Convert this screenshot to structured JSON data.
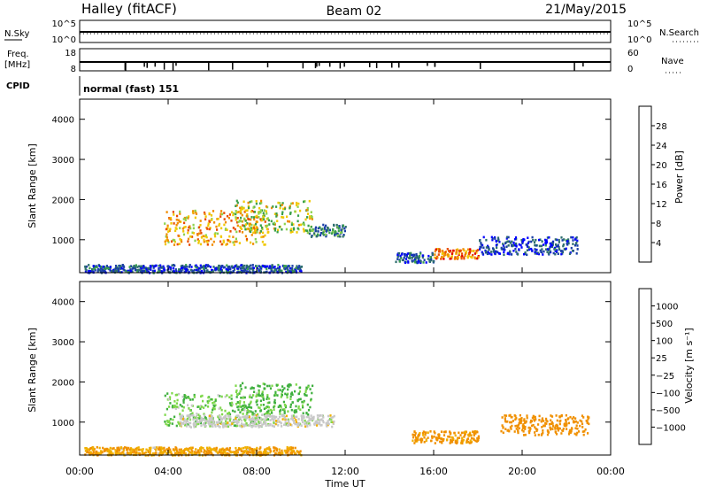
{
  "header": {
    "station": "Halley (fitACF)",
    "beam": "Beam 02",
    "date": "21/May/2015"
  },
  "noise_panel": {
    "left_label": "N.Sky",
    "left_ticks": [
      "10^5",
      "10^0"
    ],
    "right_label": "N.Search",
    "right_ticks": [
      "10^5",
      "10^0"
    ]
  },
  "freq_panel": {
    "left_label_line1": "Freq.",
    "left_label_line2": "[MHz]",
    "left_ticks": [
      "18",
      "8"
    ],
    "right_label": "Nave",
    "right_ticks": [
      "60",
      "0"
    ]
  },
  "cpid": {
    "label": "CPID",
    "value": "normal (fast) 151"
  },
  "colors": {
    "power": [
      "#0000ff",
      "#1a3fa6",
      "#2e6e6e",
      "#3aa04a",
      "#8ed24c",
      "#f0c800",
      "#f08c00",
      "#e84c00",
      "#e00000"
    ],
    "velocity": [
      "#e00000",
      "#f06000",
      "#f09000",
      "#f0b000",
      "#c8c8c8",
      "#7ed84a",
      "#40b040",
      "#2e8a80",
      "#2060a8",
      "#1030c8"
    ]
  },
  "chart_data": [
    {
      "type": "heatmap",
      "name": "power",
      "ylabel": "Slant Range [km]",
      "yticks": [
        "1000",
        "2000",
        "3000",
        "4000"
      ],
      "ylim": [
        180,
        4500
      ],
      "xlim": [
        0,
        24
      ],
      "colorbar": {
        "label": "Power [dB]",
        "ticks": [
          "4",
          "8",
          "12",
          "16",
          "20",
          "24",
          "28"
        ],
        "range": [
          0,
          32
        ]
      },
      "regions": [
        {
          "t0": 3.8,
          "t1": 8.5,
          "r0": 900,
          "r1": 1750,
          "value": 22
        },
        {
          "t0": 7.0,
          "t1": 10.5,
          "r0": 1200,
          "r1": 2000,
          "value": 17
        },
        {
          "t0": 10.3,
          "t1": 12.0,
          "r0": 1100,
          "r1": 1400,
          "value": 10
        },
        {
          "t0": 16.0,
          "t1": 18.0,
          "r0": 550,
          "r1": 800,
          "value": 24
        },
        {
          "t0": 14.2,
          "t1": 16.0,
          "r0": 450,
          "r1": 700,
          "value": 6
        },
        {
          "t0": 18.0,
          "t1": 22.5,
          "r0": 650,
          "r1": 1100,
          "value": 5
        },
        {
          "t0": 0.2,
          "t1": 10.0,
          "r0": 200,
          "r1": 400,
          "value": 6
        }
      ]
    },
    {
      "type": "heatmap",
      "name": "velocity",
      "ylabel": "Slant Range [km]",
      "yticks": [
        "1000",
        "2000",
        "3000",
        "4000"
      ],
      "ylim": [
        180,
        4500
      ],
      "xlim": [
        0,
        24
      ],
      "colorbar": {
        "label": "Velocity [m s⁻¹]",
        "ticks": [
          "1000",
          "500",
          "100",
          "25",
          "−25",
          "−100",
          "−500",
          "−1000"
        ]
      },
      "regions": [
        {
          "t0": 3.8,
          "t1": 8.5,
          "r0": 900,
          "r1": 1750,
          "value": 80
        },
        {
          "t0": 7.0,
          "t1": 10.5,
          "r0": 1200,
          "r1": 2000,
          "value": 150
        },
        {
          "t0": 4.5,
          "t1": 11.5,
          "r0": 900,
          "r1": 1200,
          "value": 0
        },
        {
          "t0": 15.0,
          "t1": 18.0,
          "r0": 500,
          "r1": 800,
          "value": -150
        },
        {
          "t0": 19.0,
          "t1": 23.0,
          "r0": 700,
          "r1": 1200,
          "value": -300
        },
        {
          "t0": 0.2,
          "t1": 10.0,
          "r0": 200,
          "r1": 400,
          "value": -100
        }
      ]
    }
  ],
  "xaxis": {
    "label": "Time UT",
    "ticks": [
      "00:00",
      "04:00",
      "08:00",
      "12:00",
      "16:00",
      "20:00",
      "00:00"
    ]
  }
}
